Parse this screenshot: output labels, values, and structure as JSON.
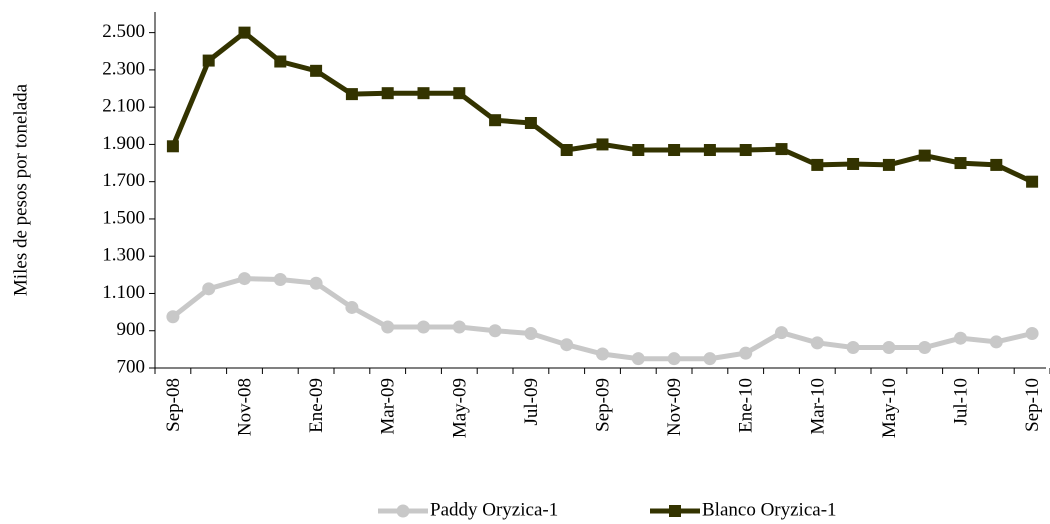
{
  "chart_data": {
    "type": "line",
    "y_label": "Miles de pesos por tonelada",
    "categories": [
      "Sep-08",
      null,
      "Nov-08",
      null,
      "Ene-09",
      null,
      "Mar-09",
      null,
      "May-09",
      null,
      "Jul-09",
      null,
      "Sep-09",
      null,
      "Nov-09",
      null,
      "Ene-10",
      null,
      "Mar-10",
      null,
      "May-10",
      null,
      "Jul-10",
      null,
      "Sep-10"
    ],
    "series": [
      {
        "name": "Paddy Oryzica-1",
        "color": "#c8c8c8",
        "marker": "circle",
        "values": [
          975,
          1125,
          1180,
          1175,
          1155,
          1025,
          920,
          920,
          920,
          900,
          885,
          825,
          775,
          750,
          750,
          750,
          780,
          890,
          835,
          810,
          810,
          810,
          860,
          840,
          885
        ]
      },
      {
        "name": "Blanco Oryzica-1",
        "color": "#333300",
        "marker": "square",
        "values": [
          1890,
          2350,
          2500,
          2345,
          2295,
          2170,
          2175,
          2175,
          2175,
          2030,
          2015,
          1870,
          1900,
          1870,
          1870,
          1870,
          1870,
          1875,
          1790,
          1795,
          1790,
          1840,
          1800,
          1790,
          1700
        ]
      }
    ],
    "ylim": [
      700,
      2600
    ],
    "yticks": [
      700,
      900,
      {
        "value": 1100,
        "label": "1.100"
      },
      {
        "value": 1300,
        "label": "1.300"
      },
      {
        "value": 1500,
        "label": "1.500"
      },
      {
        "value": 1700,
        "label": "1.700"
      },
      {
        "value": 1900,
        "label": "1.900"
      },
      {
        "value": 2100,
        "label": "2.100"
      },
      {
        "value": 2300,
        "label": "2.300"
      },
      {
        "value": 2500,
        "label": "2.500"
      }
    ],
    "legend": "bottom"
  }
}
